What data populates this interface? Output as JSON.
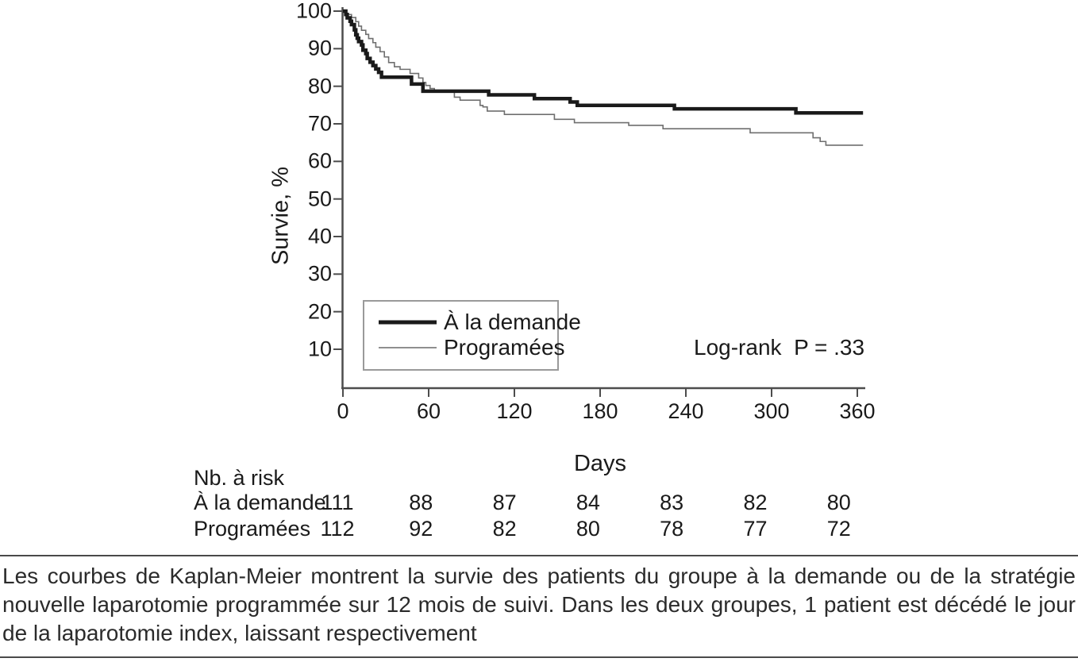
{
  "colors": {
    "curve_thick": "#1a1a1a",
    "curve_thin": "#6f6f6f",
    "axis": "#4d4d4d",
    "rule": "#4a4a4a",
    "legend_border": "#9a9a9a",
    "background": "#ffffff"
  },
  "chart_data": {
    "type": "line",
    "subtype": "kaplan-meier-step",
    "title": "",
    "xlabel": "Days",
    "ylabel": "Survie, %",
    "xlim": [
      0,
      360
    ],
    "ylim": [
      0,
      100
    ],
    "grid": false,
    "legend_position": "inside-lower-left",
    "xticks": [
      0,
      60,
      120,
      180,
      240,
      300,
      360
    ],
    "yticks": [
      100,
      90,
      80,
      70,
      60,
      50,
      40,
      30,
      20,
      10
    ],
    "annotation": "Log-rank  P = .33",
    "series": [
      {
        "name": "À la demande",
        "style": "thick-black-step",
        "points": [
          [
            0,
            100
          ],
          [
            2,
            99.1
          ],
          [
            3,
            98.2
          ],
          [
            5,
            97.3
          ],
          [
            6,
            96.4
          ],
          [
            8,
            95.0
          ],
          [
            9,
            93.7
          ],
          [
            10,
            92.8
          ],
          [
            11,
            91.9
          ],
          [
            13,
            91.0
          ],
          [
            14,
            89.6
          ],
          [
            16,
            88.7
          ],
          [
            17,
            87.4
          ],
          [
            19,
            86.4
          ],
          [
            21,
            85.5
          ],
          [
            23,
            84.6
          ],
          [
            25,
            83.7
          ],
          [
            27,
            82.4
          ],
          [
            48,
            80.6
          ],
          [
            56,
            78.7
          ],
          [
            102,
            77.7
          ],
          [
            134,
            76.7
          ],
          [
            159,
            75.8
          ],
          [
            164,
            74.9
          ],
          [
            232,
            74.0
          ],
          [
            317,
            72.9
          ],
          [
            364,
            72.9
          ]
        ]
      },
      {
        "name": "Programées",
        "style": "thin-gray-step",
        "points": [
          [
            0,
            100
          ],
          [
            2,
            99.1
          ],
          [
            6,
            98.3
          ],
          [
            9,
            97.2
          ],
          [
            11,
            96.0
          ],
          [
            13,
            94.9
          ],
          [
            16,
            93.8
          ],
          [
            18,
            92.7
          ],
          [
            21,
            91.6
          ],
          [
            23,
            90.4
          ],
          [
            26,
            89.2
          ],
          [
            29,
            87.8
          ],
          [
            32,
            86.3
          ],
          [
            36,
            85.2
          ],
          [
            40,
            84.5
          ],
          [
            47,
            83.4
          ],
          [
            53,
            82.2
          ],
          [
            56,
            81.0
          ],
          [
            58,
            80.2
          ],
          [
            61,
            79.4
          ],
          [
            64,
            78.7
          ],
          [
            78,
            77.1
          ],
          [
            82,
            76.3
          ],
          [
            96,
            74.9
          ],
          [
            98,
            74.5
          ],
          [
            101,
            73.4
          ],
          [
            113,
            72.5
          ],
          [
            148,
            71.2
          ],
          [
            162,
            70.3
          ],
          [
            200,
            69.6
          ],
          [
            224,
            68.7
          ],
          [
            285,
            67.6
          ],
          [
            329,
            66.3
          ],
          [
            334,
            65.3
          ],
          [
            338,
            64.3
          ],
          [
            364,
            64.3
          ]
        ]
      }
    ],
    "risk_table": {
      "header": "Nb. à risk",
      "columns_days": [
        0,
        60,
        120,
        180,
        240,
        300,
        360
      ],
      "rows": [
        {
          "label": "À la demande",
          "values": [
            111,
            88,
            87,
            84,
            83,
            82,
            80
          ]
        },
        {
          "label": "Programées",
          "values": [
            112,
            92,
            82,
            80,
            78,
            77,
            72
          ]
        }
      ]
    }
  },
  "caption": {
    "lines": [
      "Les courbes de Kaplan-Meier montrent la survie des patients du groupe à la demande ou de la stratégie",
      "nouvelle laparotomie programmée sur 12 mois de suivi. Dans les deux groupes, 1 patient est décédé le jour",
      "de la laparotomie index, laissant respectivement"
    ]
  }
}
